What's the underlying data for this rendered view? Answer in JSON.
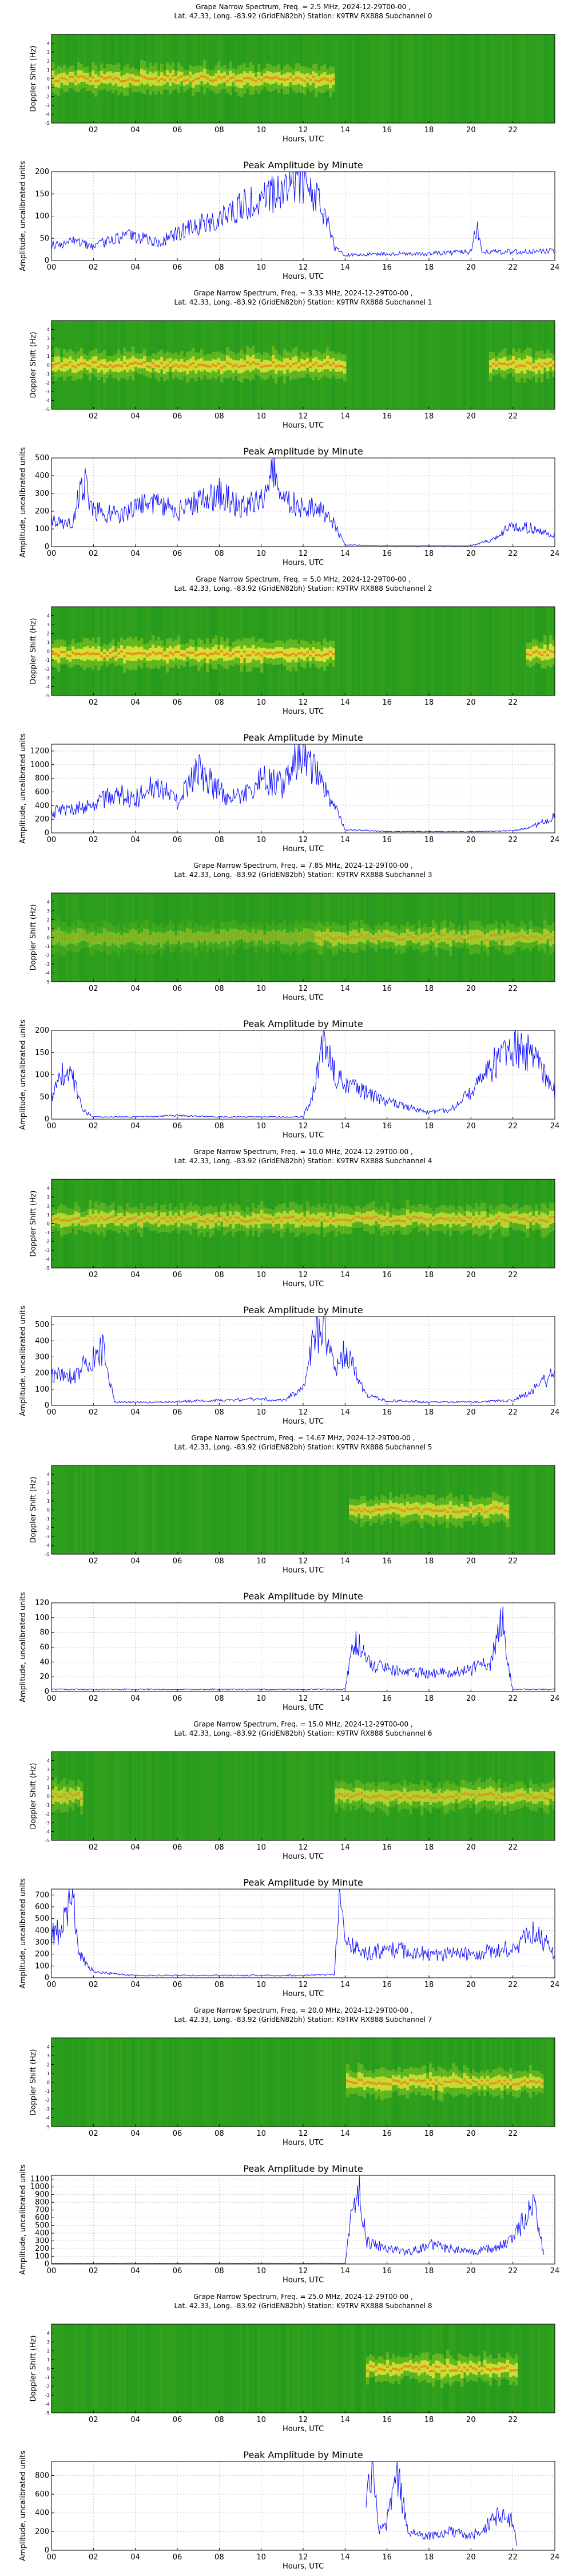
{
  "chart_data": [
    {
      "type": "heatmap",
      "title": [
        "Grape Narrow Spectrum, Freq. = 2.5 MHz, 2024-12-29T00-00 ,",
        "Lat.  42.33, Long. -83.92 (GridEN82bh) Station: K9TRV RX888 Subchannel 0"
      ],
      "xlabel": "Hours, UTC",
      "ylabel": "Doppler Shift (Hz)",
      "xlim": [
        0,
        24
      ],
      "ylim": [
        -5,
        5
      ],
      "xticks": [
        "02",
        "04",
        "06",
        "08",
        "10",
        "12",
        "14",
        "16",
        "18",
        "20",
        "22"
      ],
      "yticks": [
        "-5",
        "-4",
        "-3",
        "-2",
        "-1",
        "0",
        "1",
        "2",
        "3",
        "4"
      ],
      "signal": {
        "start": 0,
        "end": 13.5,
        "center": 0,
        "intensity": 0.85
      }
    },
    {
      "type": "line",
      "title": "Peak Amplitude by Minute",
      "xlabel": "Hours, UTC",
      "ylabel": "Amplitude, uncalibrated units",
      "xlim": [
        0,
        24
      ],
      "ylim": [
        0,
        200
      ],
      "xticks": [
        "00",
        "02",
        "04",
        "06",
        "08",
        "10",
        "12",
        "14",
        "16",
        "18",
        "20",
        "22",
        "24"
      ],
      "yticks": [
        0,
        50,
        100,
        150,
        200
      ],
      "x": [
        0,
        1,
        2,
        3,
        4,
        5,
        6,
        7,
        8,
        9,
        10,
        11,
        11.5,
        12,
        12.5,
        13,
        13.5,
        14,
        16,
        18,
        20,
        20.3,
        20.5,
        22,
        24
      ],
      "values": [
        35,
        45,
        30,
        50,
        55,
        40,
        60,
        80,
        100,
        120,
        140,
        160,
        185,
        180,
        150,
        110,
        30,
        12,
        15,
        15,
        20,
        80,
        20,
        20,
        22
      ]
    },
    {
      "type": "heatmap",
      "title": [
        "Grape Narrow Spectrum, Freq. = 3.33 MHz, 2024-12-29T00-00 ,",
        "Lat.  42.33, Long. -83.92 (GridEN82bh) Station: K9TRV RX888 Subchannel 1"
      ],
      "xlabel": "Hours, UTC",
      "ylabel": "Doppler Shift (Hz)",
      "xlim": [
        0,
        24
      ],
      "ylim": [
        -5,
        5
      ],
      "xticks": [
        "02",
        "04",
        "06",
        "08",
        "10",
        "12",
        "14",
        "16",
        "18",
        "20",
        "22"
      ],
      "yticks": [
        "-5",
        "-4",
        "-3",
        "-2",
        "-1",
        "0",
        "1",
        "2",
        "3",
        "4"
      ],
      "signal": {
        "start": 0,
        "end": 14,
        "center": 0,
        "intensity": 0.9,
        "late_start": 20.8
      }
    },
    {
      "type": "line",
      "title": "Peak Amplitude by Minute",
      "xlabel": "Hours, UTC",
      "ylabel": "Amplitude, uncalibrated units",
      "xlim": [
        0,
        24
      ],
      "ylim": [
        0,
        500
      ],
      "xticks": [
        "00",
        "02",
        "04",
        "06",
        "08",
        "10",
        "12",
        "14",
        "16",
        "18",
        "20",
        "22",
        "24"
      ],
      "yticks": [
        0,
        100,
        200,
        300,
        400,
        500
      ],
      "x": [
        0,
        1,
        1.5,
        2,
        3,
        4,
        5,
        6,
        7,
        8,
        9,
        10,
        10.5,
        11,
        12,
        13,
        13.5,
        14,
        16,
        18,
        20,
        21,
        22,
        23,
        24
      ],
      "values": [
        150,
        120,
        380,
        200,
        180,
        220,
        250,
        200,
        260,
        300,
        220,
        260,
        480,
        250,
        230,
        200,
        120,
        10,
        5,
        5,
        5,
        40,
        120,
        100,
        60
      ]
    },
    {
      "type": "heatmap",
      "title": [
        "Grape Narrow Spectrum, Freq. = 5.0 MHz, 2024-12-29T00-00 ,",
        "Lat.  42.33, Long. -83.92 (GridEN82bh) Station: K9TRV RX888 Subchannel 2"
      ],
      "xlabel": "Hours, UTC",
      "ylabel": "Doppler Shift (Hz)",
      "xlim": [
        0,
        24
      ],
      "ylim": [
        -5,
        5
      ],
      "xticks": [
        "02",
        "04",
        "06",
        "08",
        "10",
        "12",
        "14",
        "16",
        "18",
        "20",
        "22"
      ],
      "yticks": [
        "-5",
        "-4",
        "-3",
        "-2",
        "-1",
        "0",
        "1",
        "2",
        "3",
        "4"
      ],
      "signal": {
        "start": 0,
        "end": 13.5,
        "center": -0.3,
        "intensity": 0.95,
        "late_start": 22.6
      }
    },
    {
      "type": "line",
      "title": "Peak Amplitude by Minute",
      "xlabel": "Hours, UTC",
      "ylabel": "Amplitude, uncalibrated units",
      "xlim": [
        0,
        24
      ],
      "ylim": [
        0,
        1300
      ],
      "xticks": [
        "00",
        "02",
        "04",
        "06",
        "08",
        "10",
        "12",
        "14",
        "16",
        "18",
        "20",
        "22",
        "24"
      ],
      "yticks": [
        0,
        200,
        400,
        600,
        800,
        1000,
        1200
      ],
      "x": [
        0,
        1,
        2,
        3,
        4,
        5,
        6,
        7,
        8,
        9,
        10,
        11,
        12,
        12.5,
        13,
        13.5,
        14,
        16,
        18,
        20,
        22,
        23,
        24
      ],
      "values": [
        300,
        350,
        400,
        600,
        500,
        700,
        450,
        900,
        600,
        500,
        800,
        700,
        1250,
        900,
        700,
        400,
        50,
        20,
        20,
        20,
        30,
        100,
        250
      ]
    },
    {
      "type": "heatmap",
      "title": [
        "Grape Narrow Spectrum, Freq. = 7.85 MHz, 2024-12-29T00-00 ,",
        "Lat.  42.33, Long. -83.92 (GridEN82bh) Station: K9TRV RX888 Subchannel 3"
      ],
      "xlabel": "Hours, UTC",
      "ylabel": "Doppler Shift (Hz)",
      "xlim": [
        0,
        24
      ],
      "ylim": [
        -5,
        5
      ],
      "xticks": [
        "02",
        "04",
        "06",
        "08",
        "10",
        "12",
        "14",
        "16",
        "18",
        "20",
        "22"
      ],
      "yticks": [
        "-5",
        "-4",
        "-3",
        "-2",
        "-1",
        "0",
        "1",
        "2",
        "3",
        "4"
      ],
      "signal": {
        "start": 0,
        "end": 24,
        "center": 0,
        "intensity": 0.6,
        "strong_start": 12.5
      }
    },
    {
      "type": "line",
      "title": "Peak Amplitude by Minute",
      "xlabel": "Hours, UTC",
      "ylabel": "Amplitude, uncalibrated units",
      "xlim": [
        0,
        24
      ],
      "ylim": [
        0,
        200
      ],
      "xticks": [
        "00",
        "02",
        "04",
        "06",
        "08",
        "10",
        "12",
        "14",
        "16",
        "18",
        "20",
        "22",
        "24"
      ],
      "yticks": [
        0,
        50,
        100,
        150,
        200
      ],
      "x": [
        0,
        0.5,
        1,
        1.5,
        2,
        4,
        6,
        8,
        10,
        12,
        12.5,
        13,
        13.5,
        14,
        15,
        16,
        18,
        19,
        20,
        21,
        22,
        23,
        24
      ],
      "values": [
        50,
        100,
        90,
        20,
        5,
        5,
        8,
        5,
        5,
        5,
        60,
        190,
        100,
        80,
        60,
        40,
        15,
        20,
        60,
        120,
        170,
        140,
        60
      ]
    },
    {
      "type": "heatmap",
      "title": [
        "Grape Narrow Spectrum, Freq. = 10.0 MHz, 2024-12-29T00-00 ,",
        "Lat.  42.33, Long. -83.92 (GridEN82bh) Station: K9TRV RX888 Subchannel 4"
      ],
      "xlabel": "Hours, UTC",
      "ylabel": "Doppler Shift (Hz)",
      "xlim": [
        0,
        24
      ],
      "ylim": [
        -5,
        5
      ],
      "xticks": [
        "02",
        "04",
        "06",
        "08",
        "10",
        "12",
        "14",
        "16",
        "18",
        "20",
        "22"
      ],
      "yticks": [
        "-5",
        "-4",
        "-3",
        "-2",
        "-1",
        "0",
        "1",
        "2",
        "3",
        "4"
      ],
      "signal": {
        "start": 0,
        "end": 24,
        "center": 0.5,
        "intensity": 0.75
      }
    },
    {
      "type": "line",
      "title": "Peak Amplitude by Minute",
      "xlabel": "Hours, UTC",
      "ylabel": "Amplitude, uncalibrated units",
      "xlim": [
        0,
        24
      ],
      "ylim": [
        0,
        550
      ],
      "xticks": [
        "00",
        "02",
        "04",
        "06",
        "08",
        "10",
        "12",
        "14",
        "16",
        "18",
        "20",
        "22",
        "24"
      ],
      "yticks": [
        0,
        100,
        200,
        300,
        400,
        500
      ],
      "x": [
        0,
        1,
        2,
        2.5,
        3,
        5,
        8,
        10,
        11,
        12,
        12.5,
        13,
        13.5,
        14,
        14.5,
        15,
        16,
        18,
        20,
        22,
        23,
        24
      ],
      "values": [
        200,
        180,
        300,
        350,
        20,
        20,
        30,
        40,
        30,
        100,
        400,
        500,
        200,
        350,
        200,
        60,
        30,
        20,
        20,
        30,
        100,
        200
      ]
    },
    {
      "type": "heatmap",
      "title": [
        "Grape Narrow Spectrum, Freq. = 14.67 MHz, 2024-12-29T00-00 ,",
        "Lat.  42.33, Long. -83.92 (GridEN82bh) Station: K9TRV RX888 Subchannel 5"
      ],
      "xlabel": "Hours, UTC",
      "ylabel": "Doppler Shift (Hz)",
      "xlim": [
        0,
        24
      ],
      "ylim": [
        -5,
        5
      ],
      "xticks": [
        "02",
        "04",
        "06",
        "08",
        "10",
        "12",
        "14",
        "16",
        "18",
        "20",
        "22"
      ],
      "yticks": [
        "-5",
        "-4",
        "-3",
        "-2",
        "-1",
        "0",
        "1",
        "2",
        "3",
        "4"
      ],
      "signal": {
        "start": 14.2,
        "end": 21.8,
        "center": 0,
        "intensity": 0.8
      }
    },
    {
      "type": "line",
      "title": "Peak Amplitude by Minute",
      "xlabel": "Hours, UTC",
      "ylabel": "Amplitude, uncalibrated units",
      "xlim": [
        0,
        24
      ],
      "ylim": [
        0,
        120
      ],
      "xticks": [
        "00",
        "02",
        "04",
        "06",
        "08",
        "10",
        "12",
        "14",
        "16",
        "18",
        "20",
        "22",
        "24"
      ],
      "yticks": [
        0,
        20,
        40,
        60,
        80,
        100,
        120
      ],
      "x": [
        0,
        2,
        4,
        6,
        8,
        10,
        12,
        14,
        14.3,
        14.6,
        15,
        16,
        17,
        18,
        19,
        20,
        21,
        21.5,
        21.8,
        22,
        24
      ],
      "values": [
        3,
        3,
        3,
        3,
        3,
        3,
        3,
        3,
        50,
        70,
        40,
        30,
        25,
        25,
        25,
        30,
        40,
        110,
        30,
        3,
        3
      ]
    },
    {
      "type": "heatmap",
      "title": [
        "Grape Narrow Spectrum, Freq. = 15.0 MHz, 2024-12-29T00-00 ,",
        "Lat.  42.33, Long. -83.92 (GridEN82bh) Station: K9TRV RX888 Subchannel 6"
      ],
      "xlabel": "Hours, UTC",
      "ylabel": "Doppler Shift (Hz)",
      "xlim": [
        0,
        24
      ],
      "ylim": [
        -5,
        5
      ],
      "xticks": [
        "02",
        "04",
        "06",
        "08",
        "10",
        "12",
        "14",
        "16",
        "18",
        "20",
        "22"
      ],
      "yticks": [
        "-5",
        "-4",
        "-3",
        "-2",
        "-1",
        "0",
        "1",
        "2",
        "3",
        "4"
      ],
      "signal": {
        "start": 0,
        "end": 24,
        "center": 0,
        "intensity": 0.7,
        "gap": [
          1.5,
          13.5
        ]
      }
    },
    {
      "type": "line",
      "title": "Peak Amplitude by Minute",
      "xlabel": "Hours, UTC",
      "ylabel": "Amplitude, uncalibrated units",
      "xlim": [
        0,
        24
      ],
      "ylim": [
        0,
        750
      ],
      "xticks": [
        "00",
        "02",
        "04",
        "06",
        "08",
        "10",
        "12",
        "14",
        "16",
        "18",
        "20",
        "22",
        "24"
      ],
      "yticks": [
        0,
        100,
        200,
        300,
        400,
        500,
        600,
        700
      ],
      "x": [
        0,
        0.5,
        1,
        1.3,
        2,
        4,
        6,
        8,
        10,
        12,
        13.5,
        13.7,
        14,
        15,
        16,
        18,
        20,
        22,
        23,
        24
      ],
      "values": [
        350,
        400,
        700,
        200,
        50,
        20,
        20,
        20,
        20,
        20,
        30,
        650,
        300,
        200,
        250,
        200,
        200,
        250,
        400,
        200
      ]
    },
    {
      "type": "heatmap",
      "title": [
        "Grape Narrow Spectrum, Freq. = 20.0 MHz, 2024-12-29T00-00 ,",
        "Lat.  42.33, Long. -83.92 (GridEN82bh) Station: K9TRV RX888 Subchannel 7"
      ],
      "xlabel": "Hours, UTC",
      "ylabel": "Doppler Shift (Hz)",
      "xlim": [
        0,
        24
      ],
      "ylim": [
        -5,
        5
      ],
      "xticks": [
        "02",
        "04",
        "06",
        "08",
        "10",
        "12",
        "14",
        "16",
        "18",
        "20",
        "22"
      ],
      "yticks": [
        "-5",
        "-4",
        "-3",
        "-2",
        "-1",
        "0",
        "1",
        "2",
        "3",
        "4"
      ],
      "signal": {
        "start": 14,
        "end": 23.5,
        "center": 0,
        "intensity": 0.85
      }
    },
    {
      "type": "line",
      "title": "Peak Amplitude by Minute",
      "xlabel": "Hours, UTC",
      "ylabel": "Amplitude, uncalibrated units",
      "xlim": [
        0,
        24
      ],
      "ylim": [
        0,
        1150
      ],
      "xticks": [
        "00",
        "02",
        "04",
        "06",
        "08",
        "10",
        "12",
        "14",
        "16",
        "18",
        "20",
        "22",
        "24"
      ],
      "yticks": [
        0,
        100,
        200,
        300,
        400,
        500,
        600,
        700,
        800,
        900,
        1000,
        1100
      ],
      "x": [
        0,
        2,
        4,
        6,
        8,
        10,
        12,
        14,
        14.3,
        14.6,
        15,
        16,
        17,
        18,
        19,
        20,
        21,
        22,
        23,
        23.5
      ],
      "values": [
        10,
        10,
        10,
        10,
        10,
        10,
        10,
        10,
        600,
        1100,
        300,
        200,
        150,
        250,
        200,
        150,
        200,
        300,
        800,
        100
      ]
    },
    {
      "type": "heatmap",
      "title": [
        "Grape Narrow Spectrum, Freq. = 25.0 MHz, 2024-12-29T00-00 ,",
        "Lat.  42.33, Long. -83.92 (GridEN82bh) Station: K9TRV RX888 Subchannel 8"
      ],
      "xlabel": "Hours, UTC",
      "ylabel": "Doppler Shift (Hz)",
      "xlim": [
        0,
        24
      ],
      "ylim": [
        -5,
        5
      ],
      "xticks": [
        "02",
        "04",
        "06",
        "08",
        "10",
        "12",
        "14",
        "16",
        "18",
        "20",
        "22"
      ],
      "yticks": [
        "-5",
        "-4",
        "-3",
        "-2",
        "-1",
        "0",
        "1",
        "2",
        "3",
        "4"
      ],
      "signal": {
        "start": 15,
        "end": 22.2,
        "center": 0,
        "intensity": 0.9
      }
    },
    {
      "type": "line",
      "title": "Peak Amplitude by Minute",
      "xlabel": "Hours, UTC",
      "ylabel": "Amplitude, uncalibrated units",
      "xlim": [
        0,
        24
      ],
      "ylim": [
        0,
        950
      ],
      "xticks": [
        "00",
        "02",
        "04",
        "06",
        "08",
        "10",
        "12",
        "14",
        "16",
        "18",
        "20",
        "22",
        "24"
      ],
      "yticks": [
        0,
        200,
        400,
        600,
        800
      ],
      "x": [
        15,
        15.3,
        15.6,
        16,
        16.5,
        17,
        18,
        19,
        20,
        21,
        21.5,
        22,
        22.2
      ],
      "values": [
        500,
        900,
        200,
        300,
        800,
        200,
        150,
        200,
        150,
        300,
        400,
        300,
        50
      ]
    }
  ]
}
